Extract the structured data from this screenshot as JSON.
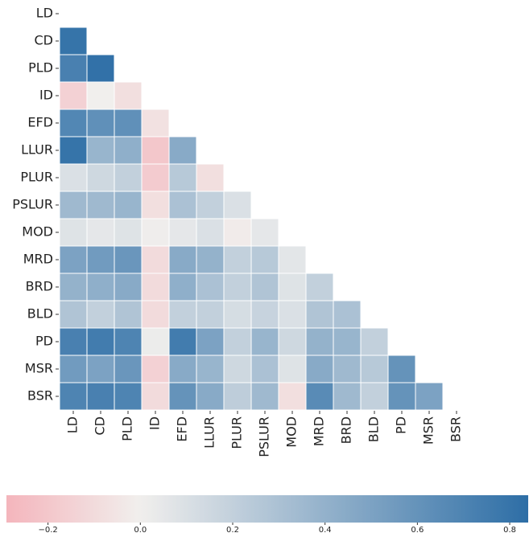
{
  "chart_data": {
    "type": "heatmap",
    "categories": [
      "LD",
      "CD",
      "PLD",
      "ID",
      "EFD",
      "LLUR",
      "PLUR",
      "PSLUR",
      "MOD",
      "MRD",
      "BRD",
      "BLD",
      "PD",
      "MSR",
      "BSR"
    ],
    "values": [
      [
        null,
        null,
        null,
        null,
        null,
        null,
        null,
        null,
        null,
        null,
        null,
        null,
        null,
        null,
        null
      ],
      [
        0.8,
        null,
        null,
        null,
        null,
        null,
        null,
        null,
        null,
        null,
        null,
        null,
        null,
        null,
        null
      ],
      [
        0.72,
        0.82,
        null,
        null,
        null,
        null,
        null,
        null,
        null,
        null,
        null,
        null,
        null,
        null,
        null
      ],
      [
        -0.15,
        0.0,
        -0.08,
        null,
        null,
        null,
        null,
        null,
        null,
        null,
        null,
        null,
        null,
        null,
        null
      ],
      [
        0.68,
        0.62,
        0.62,
        -0.07,
        null,
        null,
        null,
        null,
        null,
        null,
        null,
        null,
        null,
        null,
        null
      ],
      [
        0.8,
        0.38,
        0.42,
        -0.2,
        0.45,
        null,
        null,
        null,
        null,
        null,
        null,
        null,
        null,
        null,
        null
      ],
      [
        0.1,
        0.15,
        0.2,
        -0.18,
        0.25,
        -0.08,
        null,
        null,
        null,
        null,
        null,
        null,
        null,
        null,
        null
      ],
      [
        0.35,
        0.35,
        0.38,
        -0.08,
        0.3,
        0.2,
        0.1,
        null,
        null,
        null,
        null,
        null,
        null,
        null,
        null
      ],
      [
        0.08,
        0.05,
        0.08,
        0.01,
        0.05,
        0.1,
        -0.02,
        0.05,
        null,
        null,
        null,
        null,
        null,
        null,
        null
      ],
      [
        0.5,
        0.55,
        0.58,
        -0.1,
        0.45,
        0.4,
        0.2,
        0.25,
        0.06,
        null,
        null,
        null,
        null,
        null,
        null
      ],
      [
        0.4,
        0.42,
        0.45,
        -0.1,
        0.42,
        0.3,
        0.2,
        0.28,
        0.08,
        0.2,
        null,
        null,
        null,
        null,
        null
      ],
      [
        0.28,
        0.2,
        0.28,
        -0.1,
        0.2,
        0.2,
        0.12,
        0.18,
        0.1,
        0.28,
        0.3,
        null,
        null,
        null,
        null
      ],
      [
        0.72,
        0.75,
        0.7,
        0.02,
        0.75,
        0.5,
        0.2,
        0.38,
        0.15,
        0.4,
        0.38,
        0.2,
        null,
        null,
        null
      ],
      [
        0.55,
        0.5,
        0.58,
        -0.15,
        0.45,
        0.38,
        0.15,
        0.3,
        0.08,
        0.45,
        0.35,
        0.25,
        0.6,
        null,
        null
      ],
      [
        0.7,
        0.72,
        0.7,
        -0.1,
        0.6,
        0.45,
        0.22,
        0.35,
        -0.08,
        0.65,
        0.35,
        0.2,
        0.6,
        0.5,
        null
      ]
    ],
    "cmap": [
      "#f4b5bc",
      "#f1efed",
      "#2d6ea6"
    ],
    "center": 0,
    "clim": [
      -0.29,
      0.84
    ],
    "cticks": [
      {
        "value": -0.2,
        "label": "−0.2"
      },
      {
        "value": 0,
        "label": "0.0"
      },
      0.2,
      0.4,
      0.6,
      0.8
    ]
  }
}
